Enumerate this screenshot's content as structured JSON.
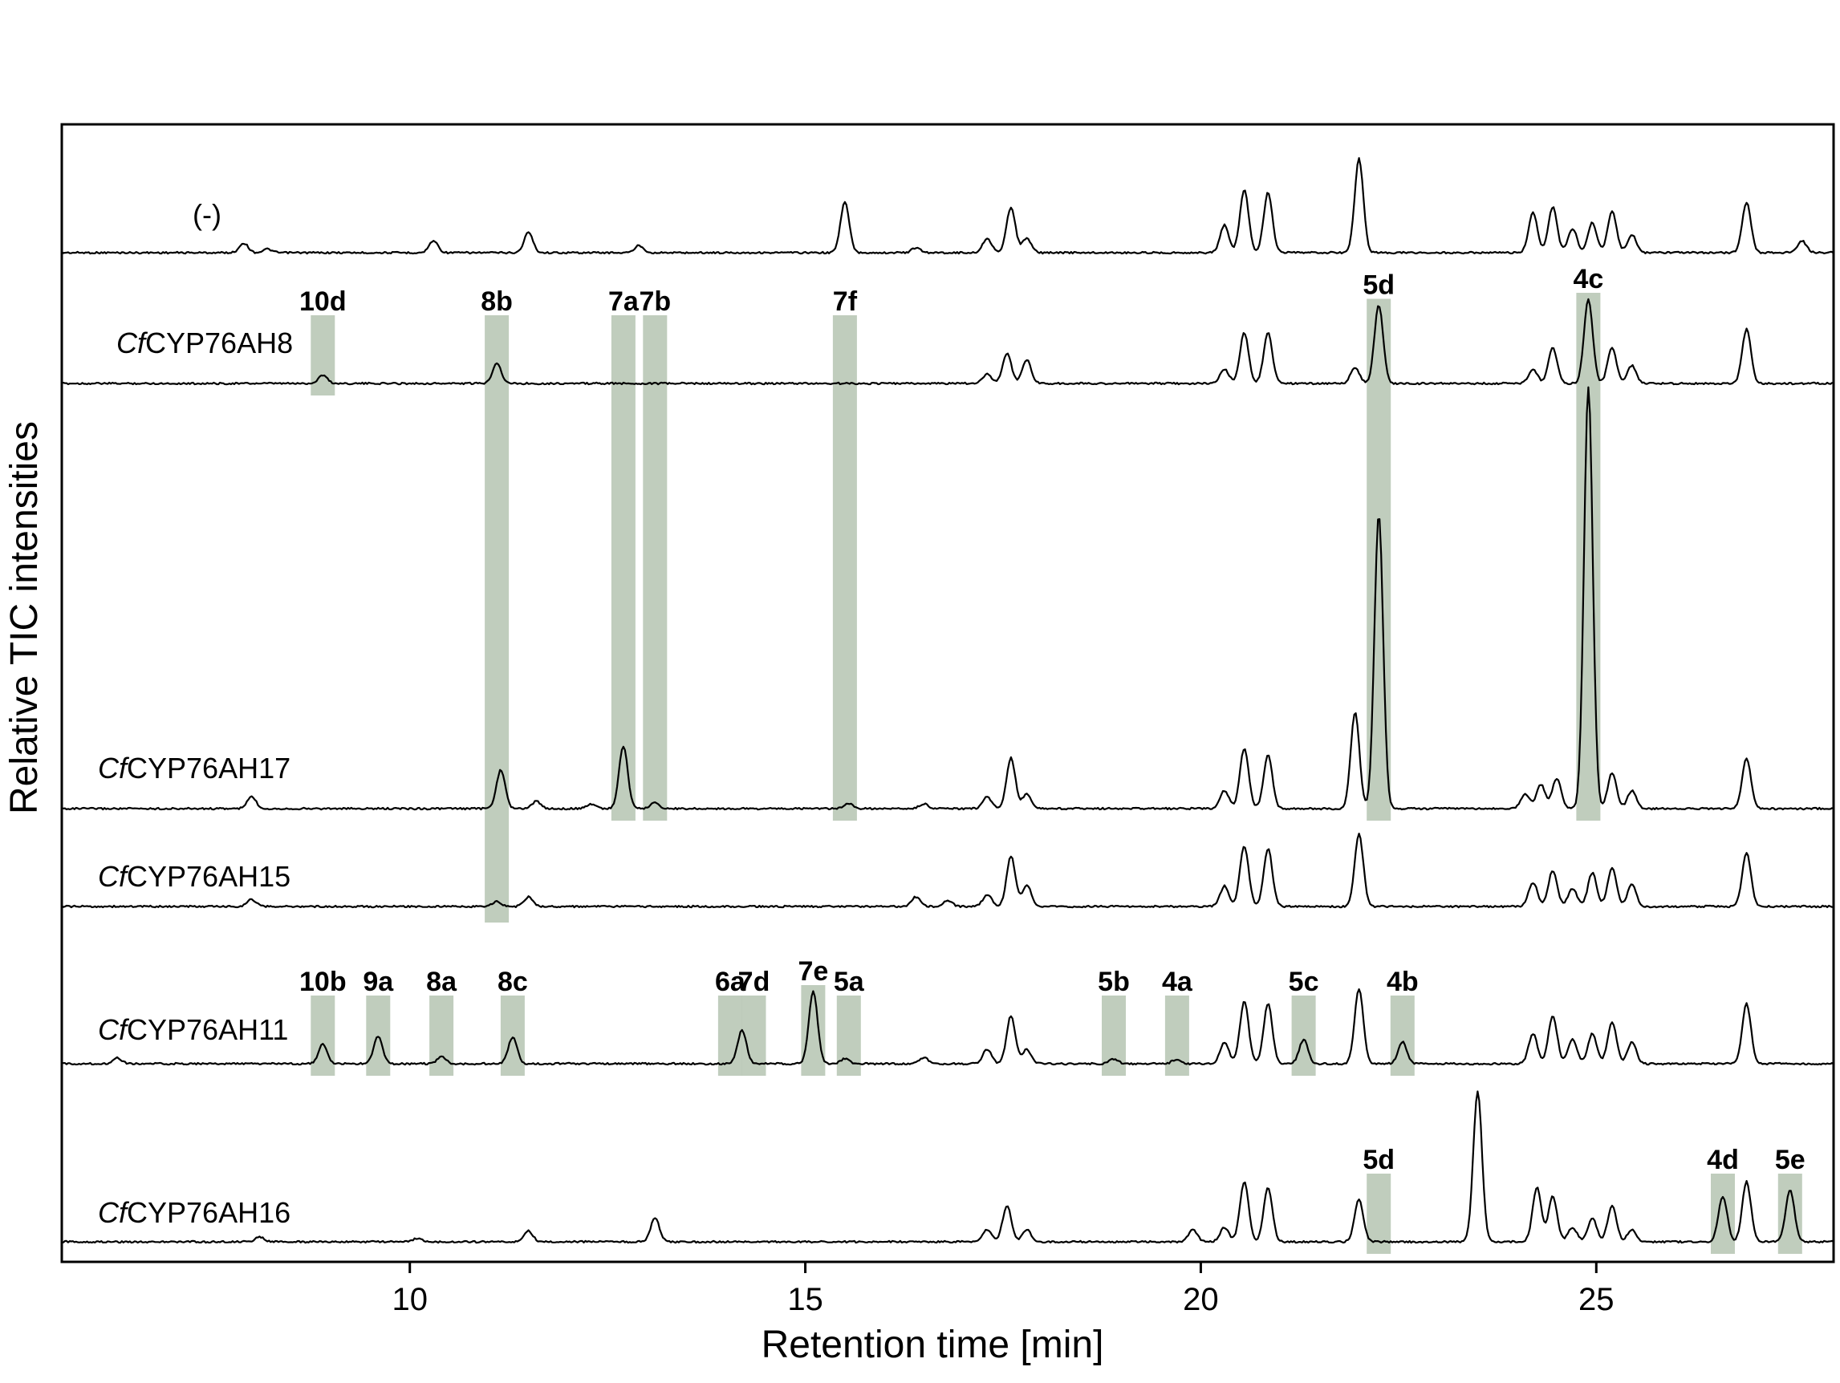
{
  "chart_data": {
    "type": "line",
    "xlabel": "Retention time [min]",
    "ylabel": "Relative TIC intensities",
    "xlim": [
      5.6,
      28.0
    ],
    "xticks": [
      10,
      15,
      20,
      25
    ],
    "grid": false,
    "legend": "none",
    "series": [
      {
        "name": "(-)",
        "name_prefix": "",
        "name_suffix": "(-)",
        "peaks": [
          [
            7.9,
            0.08
          ],
          [
            8.2,
            0.03
          ],
          [
            10.3,
            0.1
          ],
          [
            11.5,
            0.17
          ],
          [
            12.9,
            0.06
          ],
          [
            15.5,
            0.42
          ],
          [
            16.4,
            0.04
          ],
          [
            17.3,
            0.12
          ],
          [
            17.6,
            0.38
          ],
          [
            17.8,
            0.12
          ],
          [
            20.3,
            0.23
          ],
          [
            20.55,
            0.52
          ],
          [
            20.85,
            0.5
          ],
          [
            22.0,
            0.78
          ],
          [
            24.2,
            0.33
          ],
          [
            24.45,
            0.38
          ],
          [
            24.7,
            0.2
          ],
          [
            24.95,
            0.25
          ],
          [
            25.2,
            0.35
          ],
          [
            25.45,
            0.15
          ],
          [
            26.9,
            0.42
          ],
          [
            27.6,
            0.1
          ]
        ]
      },
      {
        "name": "CfCYP76AH8",
        "name_prefix": "Cf",
        "name_suffix": "CYP76AH8",
        "peaks": [
          [
            8.9,
            0.07
          ],
          [
            11.1,
            0.17
          ],
          [
            17.3,
            0.08
          ],
          [
            17.55,
            0.25
          ],
          [
            17.8,
            0.2
          ],
          [
            20.3,
            0.12
          ],
          [
            20.55,
            0.42
          ],
          [
            20.85,
            0.42
          ],
          [
            21.95,
            0.13
          ],
          [
            22.25,
            0.65
          ],
          [
            24.2,
            0.12
          ],
          [
            24.45,
            0.3
          ],
          [
            24.9,
            0.7
          ],
          [
            25.2,
            0.3
          ],
          [
            25.45,
            0.15
          ],
          [
            26.9,
            0.45
          ]
        ]
      },
      {
        "name": "CfCYP76AH17",
        "name_prefix": "Cf",
        "name_suffix": "CYP76AH17",
        "peaks": [
          [
            8.0,
            0.1
          ],
          [
            11.15,
            0.32
          ],
          [
            11.6,
            0.06
          ],
          [
            12.3,
            0.04
          ],
          [
            12.7,
            0.52
          ],
          [
            13.1,
            0.05
          ],
          [
            15.55,
            0.04
          ],
          [
            16.5,
            0.04
          ],
          [
            17.3,
            0.1
          ],
          [
            17.6,
            0.42
          ],
          [
            17.8,
            0.12
          ],
          [
            20.3,
            0.15
          ],
          [
            20.55,
            0.5
          ],
          [
            20.85,
            0.45
          ],
          [
            21.95,
            0.8
          ],
          [
            22.25,
            2.45
          ],
          [
            24.1,
            0.12
          ],
          [
            24.3,
            0.2
          ],
          [
            24.5,
            0.25
          ],
          [
            24.9,
            3.5
          ],
          [
            25.2,
            0.3
          ],
          [
            25.45,
            0.15
          ],
          [
            26.9,
            0.42
          ]
        ]
      },
      {
        "name": "CfCYP76AH15",
        "name_prefix": "Cf",
        "name_suffix": "CYP76AH15",
        "peaks": [
          [
            8.0,
            0.06
          ],
          [
            11.1,
            0.04
          ],
          [
            11.5,
            0.08
          ],
          [
            16.4,
            0.08
          ],
          [
            16.8,
            0.05
          ],
          [
            17.3,
            0.1
          ],
          [
            17.6,
            0.42
          ],
          [
            17.8,
            0.18
          ],
          [
            20.3,
            0.17
          ],
          [
            20.55,
            0.5
          ],
          [
            20.85,
            0.48
          ],
          [
            22.0,
            0.6
          ],
          [
            24.2,
            0.2
          ],
          [
            24.45,
            0.3
          ],
          [
            24.7,
            0.15
          ],
          [
            24.95,
            0.28
          ],
          [
            25.2,
            0.32
          ],
          [
            25.45,
            0.18
          ],
          [
            26.9,
            0.45
          ]
        ]
      },
      {
        "name": "CfCYP76AH11",
        "name_prefix": "Cf",
        "name_suffix": "CYP76AH11",
        "peaks": [
          [
            6.3,
            0.05
          ],
          [
            8.9,
            0.16
          ],
          [
            9.6,
            0.23
          ],
          [
            10.4,
            0.06
          ],
          [
            11.3,
            0.22
          ],
          [
            14.2,
            0.28
          ],
          [
            15.1,
            0.6
          ],
          [
            15.5,
            0.04
          ],
          [
            16.5,
            0.05
          ],
          [
            17.3,
            0.12
          ],
          [
            17.6,
            0.4
          ],
          [
            17.8,
            0.12
          ],
          [
            18.9,
            0.04
          ],
          [
            19.7,
            0.04
          ],
          [
            20.3,
            0.18
          ],
          [
            20.55,
            0.52
          ],
          [
            20.85,
            0.5
          ],
          [
            21.3,
            0.2
          ],
          [
            22.0,
            0.62
          ],
          [
            22.55,
            0.18
          ],
          [
            24.2,
            0.25
          ],
          [
            24.45,
            0.4
          ],
          [
            24.7,
            0.2
          ],
          [
            24.95,
            0.25
          ],
          [
            25.2,
            0.35
          ],
          [
            25.45,
            0.18
          ],
          [
            26.9,
            0.5
          ]
        ]
      },
      {
        "name": "CfCYP76AH16",
        "name_prefix": "Cf",
        "name_suffix": "CYP76AH16",
        "peaks": [
          [
            8.1,
            0.04
          ],
          [
            10.1,
            0.03
          ],
          [
            11.5,
            0.09
          ],
          [
            13.1,
            0.2
          ],
          [
            17.3,
            0.1
          ],
          [
            17.55,
            0.3
          ],
          [
            17.8,
            0.1
          ],
          [
            19.9,
            0.1
          ],
          [
            20.3,
            0.12
          ],
          [
            20.55,
            0.5
          ],
          [
            20.85,
            0.45
          ],
          [
            22.0,
            0.35
          ],
          [
            23.5,
            1.25
          ],
          [
            24.25,
            0.45
          ],
          [
            24.45,
            0.38
          ],
          [
            24.7,
            0.12
          ],
          [
            24.95,
            0.2
          ],
          [
            25.2,
            0.3
          ],
          [
            25.45,
            0.1
          ],
          [
            26.6,
            0.38
          ],
          [
            26.9,
            0.5
          ],
          [
            27.45,
            0.43
          ]
        ]
      }
    ],
    "annotations": [
      {
        "label": "10d",
        "series": 1,
        "x": 8.9
      },
      {
        "label": "8b",
        "series": 1,
        "x": 11.1
      },
      {
        "label": "7a",
        "series": 1,
        "x": 12.7
      },
      {
        "label": "7b",
        "series": 1,
        "x": 13.1
      },
      {
        "label": "7f",
        "series": 1,
        "x": 15.5
      },
      {
        "label": "5d",
        "series": 1,
        "x": 22.25
      },
      {
        "label": "4c",
        "series": 1,
        "x": 24.9
      },
      {
        "label": "10b",
        "series": 4,
        "x": 8.9
      },
      {
        "label": "9a",
        "series": 4,
        "x": 9.6
      },
      {
        "label": "8a",
        "series": 4,
        "x": 10.4
      },
      {
        "label": "8c",
        "series": 4,
        "x": 11.3
      },
      {
        "label": "6a",
        "series": 4,
        "x": 14.05
      },
      {
        "label": "7d",
        "series": 4,
        "x": 14.35
      },
      {
        "label": "7e",
        "series": 4,
        "x": 15.1
      },
      {
        "label": "5a",
        "series": 4,
        "x": 15.55
      },
      {
        "label": "5b",
        "series": 4,
        "x": 18.9
      },
      {
        "label": "4a",
        "series": 4,
        "x": 19.7
      },
      {
        "label": "5c",
        "series": 4,
        "x": 21.3
      },
      {
        "label": "4b",
        "series": 4,
        "x": 22.55
      },
      {
        "label": "5d",
        "series": 5,
        "x": 22.25
      },
      {
        "label": "4d",
        "series": 5,
        "x": 26.6
      },
      {
        "label": "5e",
        "series": 5,
        "x": 27.45
      }
    ]
  },
  "colors": {
    "band": "#b5c4b1",
    "trace": "#000000",
    "frame": "#000000"
  }
}
